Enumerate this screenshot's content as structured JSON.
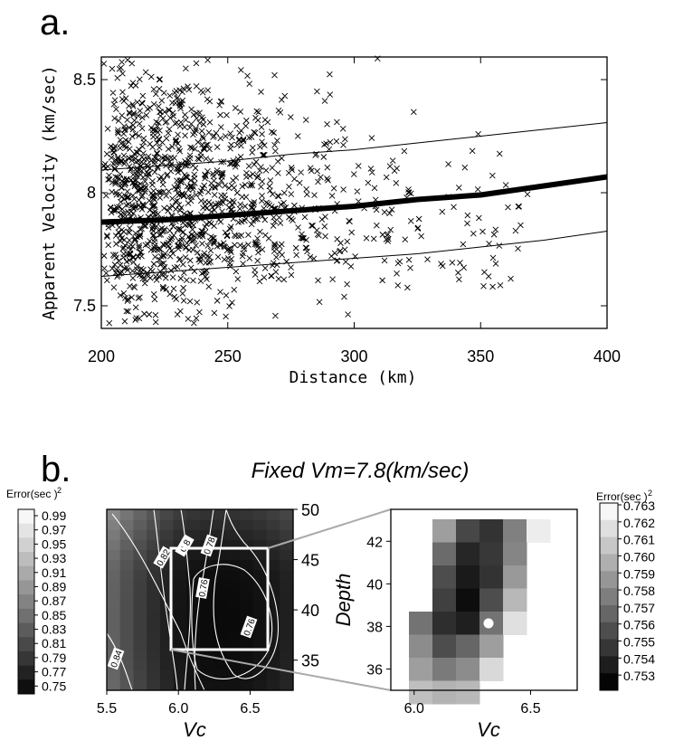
{
  "panel_a": {
    "label": "a.",
    "xlabel": "Distance (km)",
    "ylabel": "Apparent Velocity (km/sec)",
    "xticks": [
      "200",
      "250",
      "300",
      "350",
      "400"
    ],
    "yticks": [
      "7.5",
      "8",
      "8.5"
    ]
  },
  "panel_b": {
    "label": "b.",
    "title": "Fixed Vm=7.8(km/sec)",
    "left_colorbar_title": "Error(sec )",
    "left_colorbar_superscript": "2",
    "left_colorbar_ticks": [
      "0.99",
      "0.97",
      "0.95",
      "0.93",
      "0.91",
      "0.89",
      "0.87",
      "0.85",
      "0.83",
      "0.81",
      "0.79",
      "0.77",
      "0.75"
    ],
    "right_colorbar_title": "Error(sec )",
    "right_colorbar_superscript": "2",
    "right_colorbar_ticks": [
      "0.763",
      "0.762",
      "0.761",
      "0.760",
      "0.759",
      "0.758",
      "0.757",
      "0.756",
      "0.755",
      "0.754",
      "0.753"
    ],
    "left_map": {
      "xlabel": "Vc",
      "xticks": [
        "5.5",
        "6.0",
        "6.5"
      ],
      "yticks_right": [
        "50",
        "45",
        "40",
        "35"
      ],
      "contour_labels": [
        "0.82",
        "0.8",
        "0.78",
        "0.76",
        "0.76",
        "0.84"
      ]
    },
    "right_map": {
      "xlabel": "Vc",
      "ylabel": "Depth",
      "xticks": [
        "6.0",
        "6.5"
      ],
      "yticks": [
        "42",
        "40",
        "38",
        "36"
      ],
      "best_fit_marker": "white-dot"
    }
  },
  "chart_data": [
    {
      "type": "scatter",
      "title": "",
      "xlabel": "Distance (km)",
      "ylabel": "Apparent Velocity (km/sec)",
      "xlim": [
        200,
        400
      ],
      "ylim": [
        7.4,
        8.6
      ],
      "marker": "x",
      "grid": false,
      "scatter_description": "~1500 points, dense at 200-240 km spanning 7.45-8.55 km/sec, sparser beyond 300 km",
      "series": [
        {
          "x": [
            200,
            225,
            250,
            275,
            300,
            325,
            350,
            375,
            400
          ],
          "y": [
            7.87,
            7.88,
            7.9,
            7.92,
            7.94,
            7.97,
            7.99,
            8.03,
            8.07
          ]
        },
        {
          "x": [
            200,
            225,
            250,
            275,
            300,
            325,
            350,
            375,
            400
          ],
          "y": [
            8.1,
            8.12,
            8.14,
            8.17,
            8.19,
            8.22,
            8.25,
            8.28,
            8.31
          ]
        },
        {
          "x": [
            200,
            225,
            250,
            275,
            300,
            325,
            350,
            375,
            400
          ],
          "y": [
            7.63,
            7.65,
            7.67,
            7.69,
            7.71,
            7.73,
            7.76,
            7.79,
            7.83
          ]
        }
      ]
    },
    {
      "type": "heatmap",
      "title": "Fixed Vm=7.8(km/sec)",
      "xlabel": "Vc",
      "xlim": [
        5.5,
        6.8
      ],
      "ylim": [
        32,
        50
      ],
      "colorbar_range": [
        0.75,
        0.99
      ],
      "colormap": "grayscale (black = low error, white = high error)",
      "zoom_box": {
        "vc": [
          5.95,
          6.65
        ],
        "depth": [
          35,
          43
        ]
      }
    },
    {
      "type": "heatmap",
      "xlabel": "Vc",
      "ylabel": "Depth",
      "xlim": [
        5.9,
        6.7
      ],
      "ylim": [
        35,
        43.5
      ],
      "colorbar_range": [
        0.753,
        0.763
      ],
      "colormap": "grayscale",
      "best_fit": {
        "vc": 6.3,
        "depth": 39
      }
    }
  ]
}
